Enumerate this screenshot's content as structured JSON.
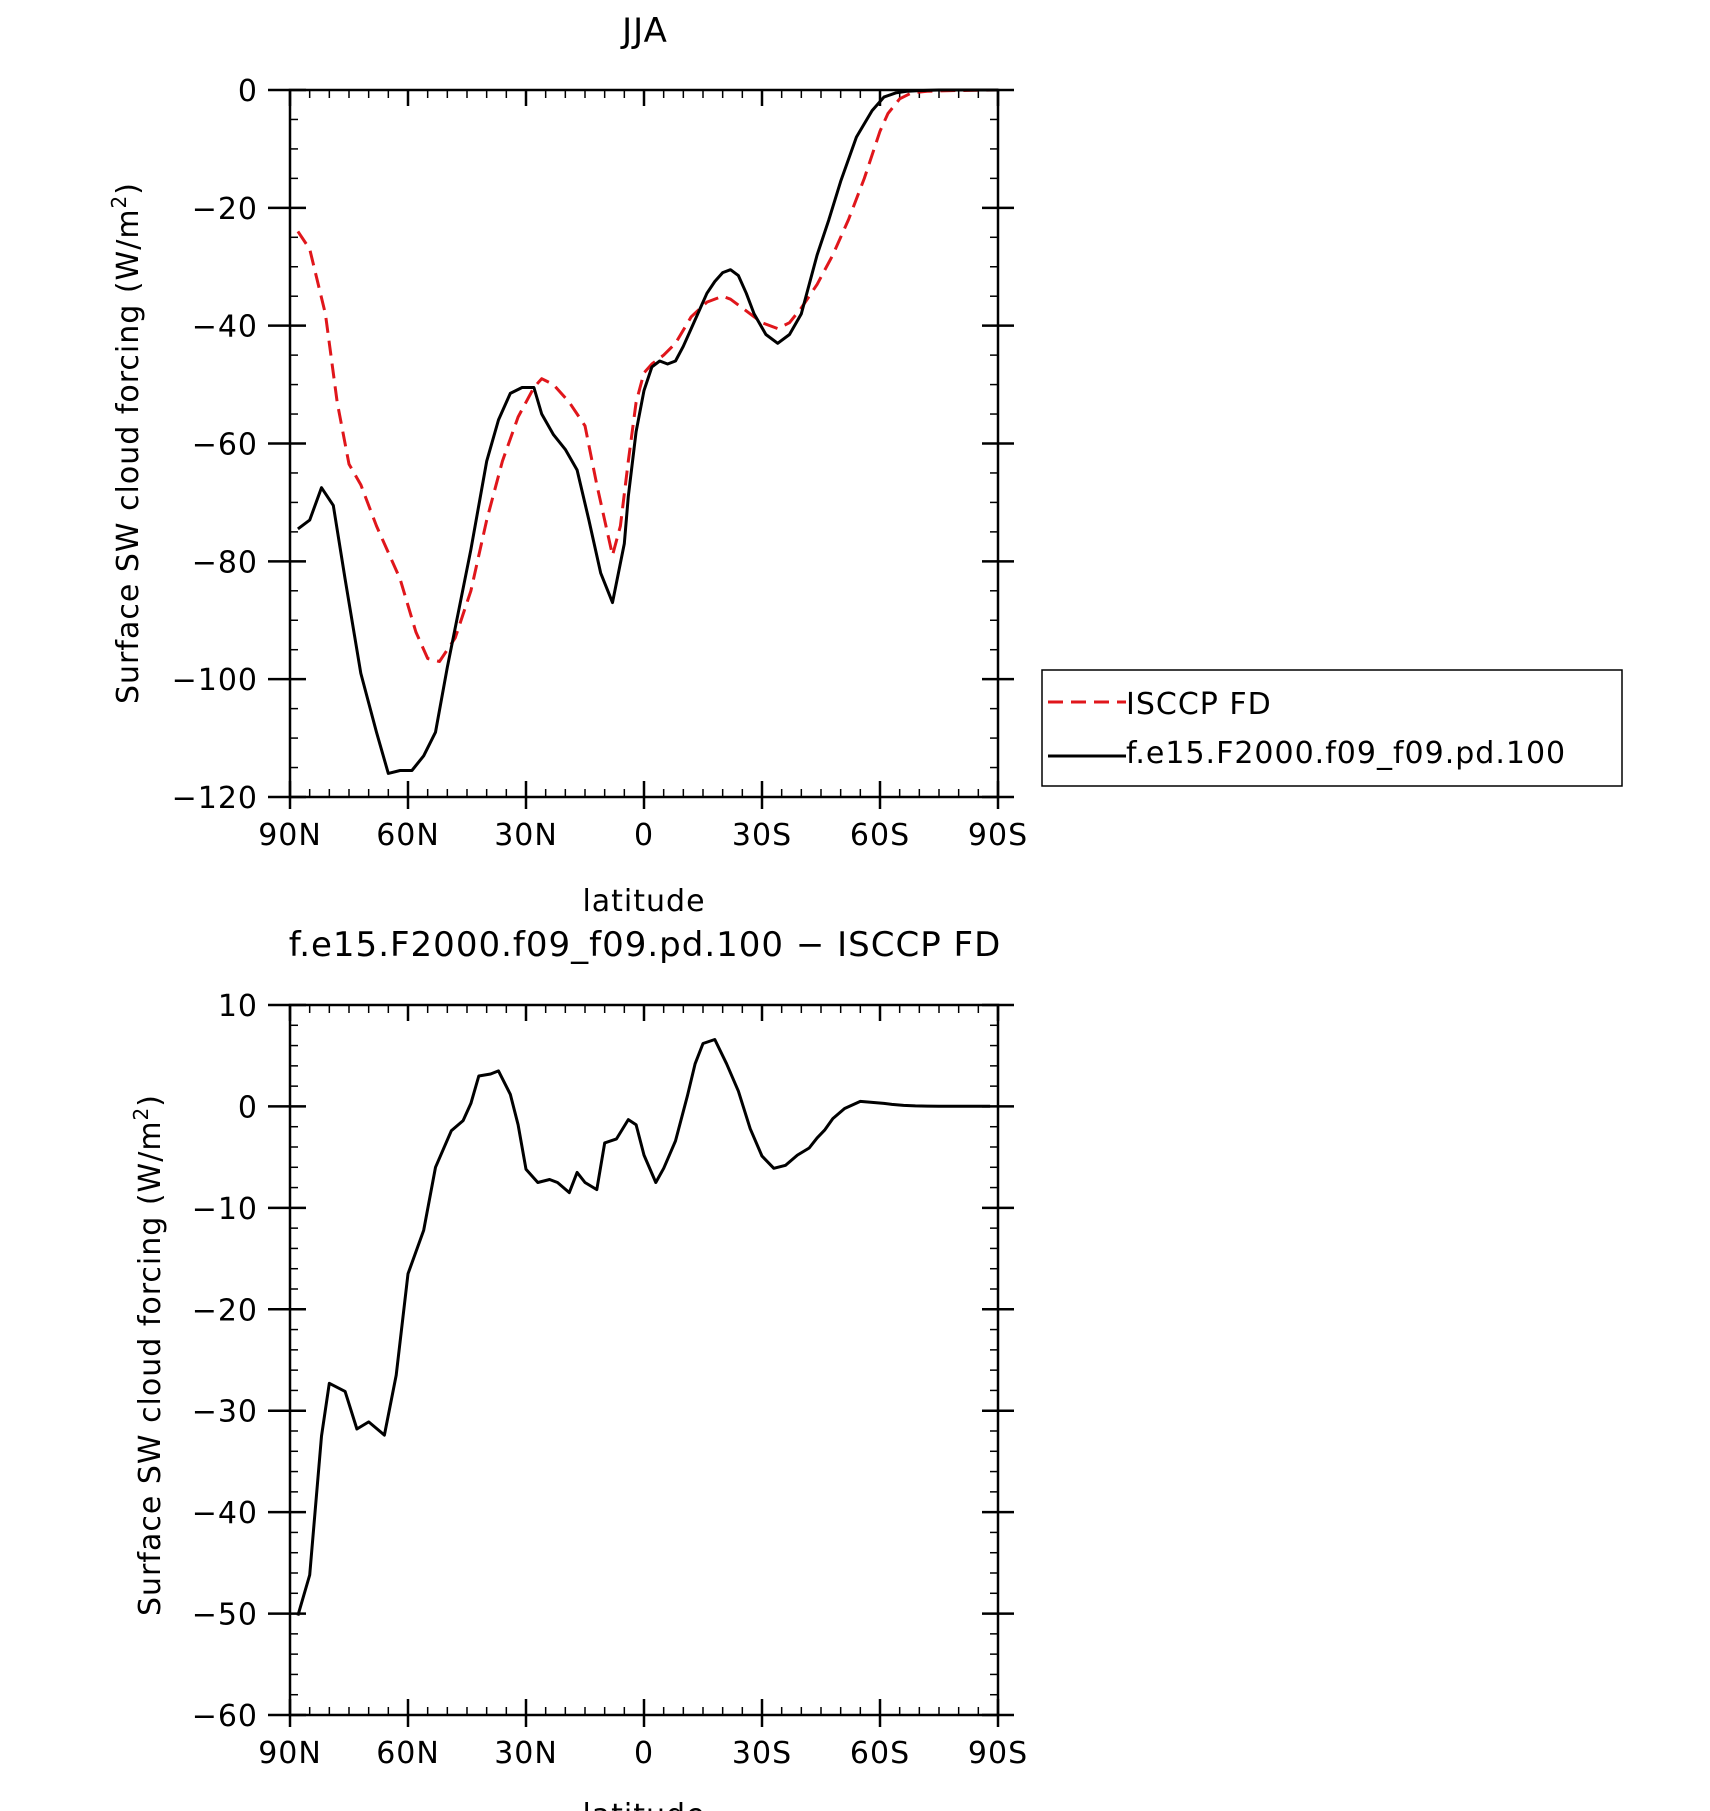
{
  "chart_data": [
    {
      "type": "line",
      "title": "JJA",
      "xlabel": "latitude",
      "ylabel_main": "Surface SW cloud forcing (W/m",
      "ylabel_sup": "2",
      "ylabel_close": ")",
      "xlim": [
        90,
        -90
      ],
      "ylim": [
        -120,
        0
      ],
      "x_ticks": [
        90,
        60,
        30,
        0,
        -30,
        -60,
        -90
      ],
      "x_tick_labels": [
        "90N",
        "60N",
        "30N",
        "0",
        "30S",
        "60S",
        "90S"
      ],
      "y_ticks": [
        0,
        -20,
        -40,
        -60,
        -80,
        -100,
        -120
      ],
      "y_tick_labels": [
        "0",
        "−20",
        "−40",
        "−60",
        "−80",
        "−100",
        "−120"
      ],
      "legend_position": "right",
      "series": [
        {
          "name": "ISCCP FD",
          "color": "#e0161b",
          "dash": "dashed",
          "x": [
            88,
            85,
            81,
            78,
            75,
            72,
            68,
            62,
            58,
            55,
            52,
            48,
            44,
            40,
            36,
            32,
            28,
            26,
            23,
            19,
            15,
            12,
            8,
            6,
            4,
            2,
            0,
            -2,
            -5,
            -8,
            -12,
            -16,
            -20,
            -22,
            -26,
            -30,
            -34,
            -37,
            -40,
            -44,
            -48,
            -52,
            -56,
            -60,
            -62,
            -65,
            -68,
            -72,
            -78,
            -85,
            -90
          ],
          "y": [
            -24,
            -27,
            -38,
            -53,
            -63.5,
            -67,
            -74,
            -83,
            -92,
            -96.5,
            -97,
            -93,
            -85,
            -73,
            -63,
            -55.5,
            -50.5,
            -49,
            -50,
            -53,
            -57,
            -67,
            -79,
            -74,
            -63,
            -53,
            -48,
            -46.5,
            -45,
            -43,
            -38.5,
            -36,
            -35,
            -35.5,
            -37.5,
            -39.5,
            -40.5,
            -39.5,
            -37,
            -33,
            -28,
            -22,
            -15,
            -7,
            -4,
            -1.5,
            -0.5,
            -0.2,
            -0.1,
            -0.05,
            0
          ]
        },
        {
          "name": "f.e15.F2000.f09_f09.pd.100",
          "color": "#000000",
          "dash": "solid",
          "x": [
            88,
            85,
            82,
            79,
            76,
            72,
            68,
            65,
            62,
            59,
            56,
            53,
            50,
            47,
            44,
            40,
            37,
            34,
            31,
            28,
            26,
            23,
            20,
            17,
            14,
            11,
            8,
            5,
            4,
            2,
            0,
            -2,
            -4,
            -6,
            -8,
            -10,
            -12,
            -14,
            -16,
            -18,
            -20,
            -22,
            -24,
            -26,
            -28,
            -31,
            -34,
            -37,
            -40,
            -42,
            -44,
            -47,
            -50,
            -54,
            -58,
            -61,
            -64,
            -67,
            -70,
            -75,
            -80,
            -85,
            -90
          ],
          "y": [
            -74.5,
            -73,
            -67.5,
            -70.5,
            -83,
            -99,
            -109,
            -116,
            -115.5,
            -115.5,
            -113,
            -109,
            -98,
            -88,
            -78,
            -63,
            -56,
            -51.5,
            -50.5,
            -50.5,
            -55,
            -58.5,
            -61,
            -64.5,
            -73,
            -82,
            -87,
            -77,
            -69,
            -58,
            -51,
            -47,
            -46,
            -46.5,
            -46,
            -43.5,
            -40.5,
            -37.5,
            -34.5,
            -32.5,
            -31,
            -30.5,
            -31.5,
            -34.5,
            -38,
            -41.5,
            -43,
            -41.5,
            -38,
            -33,
            -28,
            -22,
            -15.5,
            -8,
            -3.5,
            -1.2,
            -0.5,
            -0.2,
            -0.1,
            0,
            0,
            0,
            0
          ]
        }
      ]
    },
    {
      "type": "line",
      "title": "f.e15.F2000.f09_f09.pd.100 − ISCCP FD",
      "xlabel": "latitude",
      "ylabel_main": "Surface SW cloud forcing (W/m",
      "ylabel_sup": "2",
      "ylabel_close": ")",
      "xlim": [
        90,
        -90
      ],
      "ylim": [
        -60,
        10
      ],
      "x_ticks": [
        90,
        60,
        30,
        0,
        -30,
        -60,
        -90
      ],
      "x_tick_labels": [
        "90N",
        "60N",
        "30N",
        "0",
        "30S",
        "60S",
        "90S"
      ],
      "y_ticks": [
        10,
        0,
        -10,
        -20,
        -30,
        -40,
        -50,
        -60
      ],
      "y_tick_labels": [
        "10",
        "0",
        "−10",
        "−20",
        "−30",
        "−40",
        "−50",
        "−60"
      ],
      "series": [
        {
          "name": "",
          "color": "#000000",
          "dash": "solid",
          "x": [
            88,
            85,
            82,
            80,
            76,
            73,
            70,
            66,
            63,
            60,
            56,
            53,
            49,
            46,
            44,
            42,
            39,
            37,
            34,
            32,
            30,
            27,
            24,
            22,
            19,
            17,
            15,
            12,
            10,
            7,
            4,
            2,
            0,
            -3,
            -5,
            -8,
            -11,
            -13,
            -15,
            -18,
            -21,
            -24,
            -27,
            -30,
            -33,
            -36,
            -39,
            -42,
            -44,
            -46,
            -48,
            -51,
            -55,
            -58,
            -61,
            -63,
            -66,
            -69,
            -72,
            -75,
            -80,
            -85,
            -88
          ],
          "y": [
            -50.2,
            -46.2,
            -32.5,
            -27.3,
            -28.1,
            -31.8,
            -31.1,
            -32.4,
            -26.5,
            -16.5,
            -12.2,
            -6.0,
            -2.4,
            -1.4,
            0.3,
            3.0,
            3.2,
            3.5,
            1.2,
            -1.8,
            -6.2,
            -7.5,
            -7.2,
            -7.5,
            -8.5,
            -6.5,
            -7.5,
            -8.2,
            -3.6,
            -3.2,
            -1.3,
            -1.8,
            -4.8,
            -7.5,
            -6.1,
            -3.4,
            1.0,
            4.2,
            6.2,
            6.6,
            4.2,
            1.5,
            -2.2,
            -4.9,
            -6.1,
            -5.8,
            -4.8,
            -4.1,
            -3.1,
            -2.3,
            -1.2,
            -0.2,
            0.5,
            0.4,
            0.3,
            0.2,
            0.1,
            0.05,
            0.03,
            0.02,
            0.02,
            0.02,
            0.02
          ]
        }
      ]
    }
  ]
}
